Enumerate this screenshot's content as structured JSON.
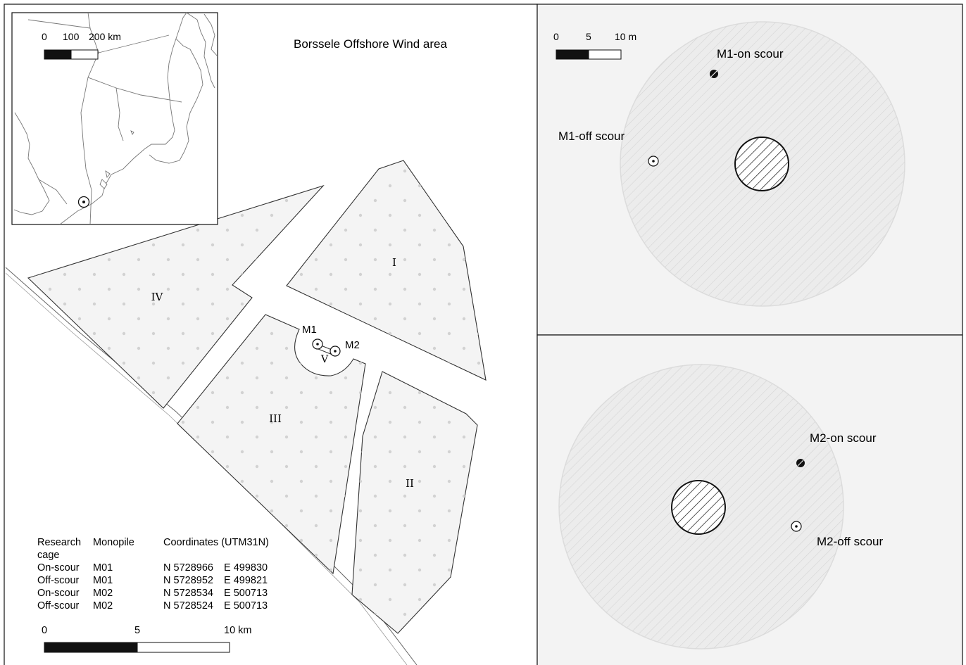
{
  "main_map": {
    "title": "Borssele Offshore Wind area",
    "zones": [
      {
        "id": "I",
        "label": "I"
      },
      {
        "id": "II",
        "label": "II"
      },
      {
        "id": "III",
        "label": "III"
      },
      {
        "id": "IV",
        "label": "IV"
      },
      {
        "id": "V",
        "label": "V"
      }
    ],
    "monopiles": [
      {
        "label": "M1"
      },
      {
        "label": "M2"
      }
    ],
    "table": {
      "headers": [
        "Research",
        "Monopile",
        "Coordinates (UTM31N)"
      ],
      "header_cont": "cage",
      "rows": [
        {
          "cage": "On-scour",
          "monopile": "M01",
          "north": "N 5728966",
          "east": "E 499830"
        },
        {
          "cage": "Off-scour",
          "monopile": "M01",
          "north": "N 5728952",
          "east": "E 499821"
        },
        {
          "cage": "On-scour",
          "monopile": "M02",
          "north": "N 5728534",
          "east": "E 500713"
        },
        {
          "cage": "Off-scour",
          "monopile": "M02",
          "north": "N 5728524",
          "east": "E 500713"
        }
      ]
    },
    "scale": {
      "labels": [
        "0",
        "5",
        "10 km"
      ]
    }
  },
  "inset_map": {
    "scale": {
      "labels": [
        "0",
        "100",
        "200 km"
      ]
    }
  },
  "detail_m1": {
    "scale": {
      "labels": [
        "0",
        "5",
        "10 m"
      ]
    },
    "on_label": "M1-on scour",
    "off_label": "M1-off scour"
  },
  "detail_m2": {
    "on_label": "M2-on scour",
    "off_label": "M2-off scour"
  },
  "colors": {
    "zone_fill": "#f4f4f4",
    "panel_fill": "#f3f3f3",
    "scour_fill": "#e9e9e9",
    "dot": "#d2d2d2",
    "line": "#333333"
  }
}
